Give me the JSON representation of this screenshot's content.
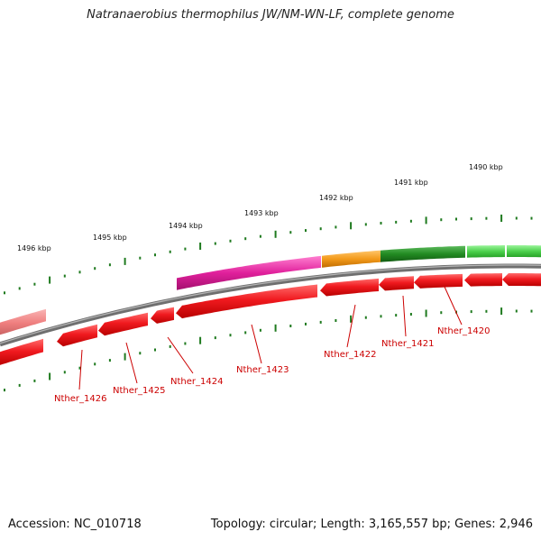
{
  "title": "Natranaerobius thermophilus JW/NM-WN-LF, complete genome",
  "footer": {
    "accession": "Accession: NC_010718",
    "summary": "Topology: circular; Length: 3,165,557 bp; Genes: 2,946"
  },
  "scale_labels": [
    "1496 kbp",
    "1495 kbp",
    "1494 kbp",
    "1493 kbp",
    "1492 kbp",
    "1491 kbp",
    "1490 kbp"
  ],
  "gene_labels": [
    "Nther_1426",
    "Nther_1425",
    "Nther_1424",
    "Nther_1423",
    "Nther_1422",
    "Nther_1421",
    "Nther_1420"
  ],
  "colors": {
    "background": "#ffffff",
    "backbone": "#8a8a8a",
    "scale_ticks": "#1f7a1f",
    "scale_label": "#111111",
    "forward_genes": "#e8151b",
    "reverse_gene_salmon": "#f08080",
    "reverse_gene_magenta": "#e0209b",
    "reverse_gene_orange": "#f39a1a",
    "reverse_gene_dark_green": "#228b22",
    "reverse_gene_light_green": "#4cd04c",
    "gene_label": "#cc0000",
    "leader_line": "#cc0000"
  }
}
